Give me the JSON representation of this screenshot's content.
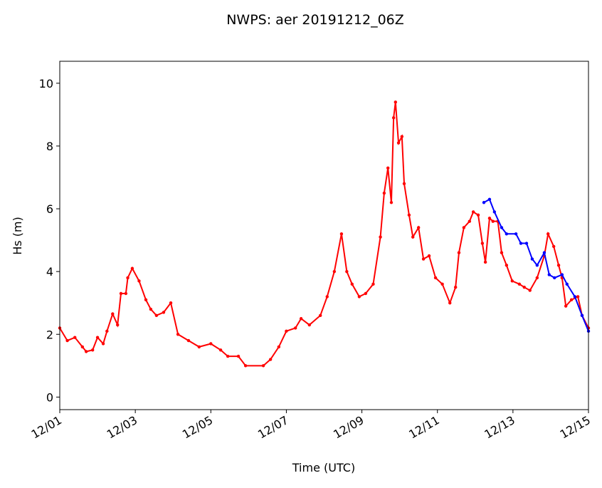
{
  "chart_data": {
    "type": "line",
    "title": "NWPS: aer 20191212_06Z",
    "xlabel": "Time (UTC)",
    "ylabel": "Hs (m)",
    "xlim": [
      0,
      14
    ],
    "xticks": [
      {
        "value": 0,
        "label": "12/01"
      },
      {
        "value": 2,
        "label": "12/03"
      },
      {
        "value": 4,
        "label": "12/05"
      },
      {
        "value": 6,
        "label": "12/07"
      },
      {
        "value": 8,
        "label": "12/09"
      },
      {
        "value": 10,
        "label": "12/11"
      },
      {
        "value": 12,
        "label": "12/13"
      },
      {
        "value": 14,
        "label": "12/15"
      }
    ],
    "ylim": [
      -0.4,
      10.7
    ],
    "yticks": [
      0,
      2,
      4,
      6,
      8,
      10
    ],
    "series": [
      {
        "color": "#ff0000",
        "x": [
          0,
          0.2,
          0.4,
          0.6,
          0.7,
          0.87,
          1.0,
          1.15,
          1.25,
          1.4,
          1.53,
          1.62,
          1.75,
          1.8,
          1.92,
          2.1,
          2.28,
          2.41,
          2.56,
          2.75,
          2.94,
          3.13,
          3.41,
          3.69,
          4.0,
          4.26,
          4.45,
          4.73,
          4.92,
          5.39,
          5.58,
          5.8,
          6.0,
          6.24,
          6.39,
          6.61,
          6.9,
          7.08,
          7.27,
          7.46,
          7.6,
          7.74,
          7.93,
          8.1,
          8.3,
          8.49,
          8.59,
          8.69,
          8.78,
          8.84,
          8.89,
          8.97,
          9.06,
          9.12,
          9.25,
          9.35,
          9.5,
          9.63,
          9.78,
          9.95,
          10.13,
          10.33,
          10.48,
          10.57,
          10.7,
          10.85,
          10.95,
          11.08,
          11.19,
          11.27,
          11.38,
          11.47,
          11.6,
          11.7,
          11.83,
          11.98,
          12.17,
          12.3,
          12.45,
          12.64,
          12.83,
          12.93,
          13.08,
          13.21,
          13.3,
          13.4,
          13.55,
          13.72,
          13.83,
          14.0
        ],
        "values": [
          2.2,
          1.8,
          1.9,
          1.6,
          1.45,
          1.5,
          1.9,
          1.7,
          2.1,
          2.65,
          2.3,
          3.3,
          3.3,
          3.8,
          4.1,
          3.7,
          3.1,
          2.8,
          2.6,
          2.7,
          3.0,
          2.0,
          1.8,
          1.6,
          1.7,
          1.5,
          1.3,
          1.3,
          1.0,
          1.0,
          1.2,
          1.6,
          2.1,
          2.2,
          2.5,
          2.3,
          2.6,
          3.2,
          4.0,
          5.2,
          4.0,
          3.6,
          3.2,
          3.3,
          3.6,
          5.1,
          6.5,
          7.3,
          6.2,
          8.9,
          9.4,
          8.1,
          8.3,
          6.8,
          5.8,
          5.1,
          5.4,
          4.4,
          4.5,
          3.8,
          3.6,
          3.0,
          3.5,
          4.6,
          5.4,
          5.6,
          5.9,
          5.8,
          4.9,
          4.3,
          5.7,
          5.6,
          5.6,
          4.6,
          4.2,
          3.7,
          3.6,
          3.5,
          3.4,
          3.8,
          4.5,
          5.2,
          4.8,
          4.2,
          3.8,
          2.9,
          3.1,
          3.2,
          2.6,
          2.2
        ]
      },
      {
        "color": "#0000ff",
        "x": [
          11.23,
          11.38,
          11.51,
          11.7,
          11.83,
          12.08,
          12.21,
          12.36,
          12.51,
          12.64,
          12.83,
          12.96,
          13.1,
          13.3,
          13.43,
          13.64,
          13.83,
          14.0
        ],
        "values": [
          6.2,
          6.3,
          5.9,
          5.4,
          5.2,
          5.2,
          4.9,
          4.9,
          4.4,
          4.2,
          4.6,
          3.9,
          3.8,
          3.9,
          3.6,
          3.2,
          2.6,
          2.1
        ]
      }
    ]
  }
}
